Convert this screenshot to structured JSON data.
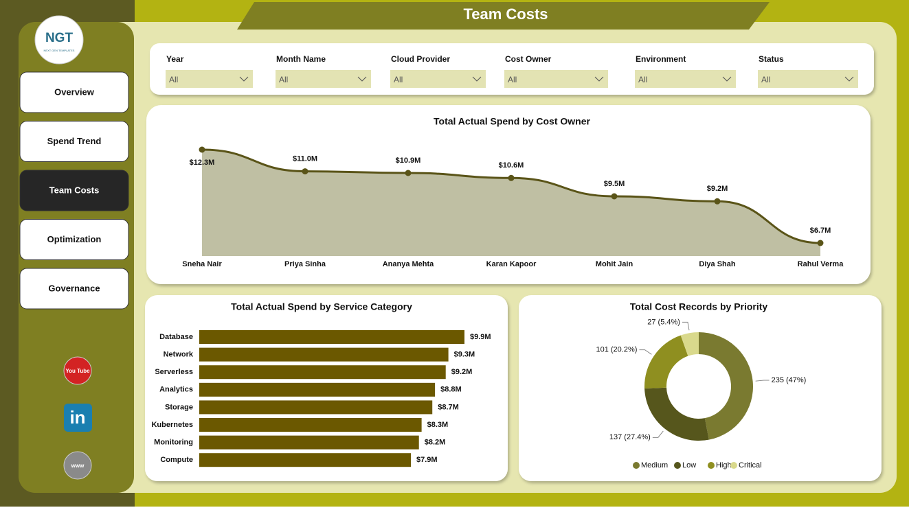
{
  "header": {
    "title": "Team Costs"
  },
  "logo": {
    "name": "NGT",
    "tagline": "NEXT GEN TEMPLATES"
  },
  "nav": [
    {
      "label": "Overview"
    },
    {
      "label": "Spend Trend"
    },
    {
      "label": "Team Costs",
      "active": true
    },
    {
      "label": "Optimization"
    },
    {
      "label": "Governance"
    }
  ],
  "filters": [
    {
      "label": "Year",
      "value": "All"
    },
    {
      "label": "Month Name",
      "value": "All"
    },
    {
      "label": "Cloud Provider",
      "value": "All"
    },
    {
      "label": "Cost Owner",
      "value": "All"
    },
    {
      "label": "Environment",
      "value": "All"
    },
    {
      "label": "Status",
      "value": "All"
    }
  ],
  "social": [
    "You Tube",
    "in",
    "www"
  ],
  "chart_data": [
    {
      "type": "area",
      "title": "Total Actual Spend by Cost Owner",
      "categories": [
        "Sneha Nair",
        "Priya Sinha",
        "Ananya Mehta",
        "Karan Kapoor",
        "Mohit Jain",
        "Diya Shah",
        "Rahul Verma"
      ],
      "values": [
        12.3,
        11.0,
        10.9,
        10.6,
        9.5,
        9.2,
        6.7
      ],
      "value_labels": [
        "$12.3M",
        "$11.0M",
        "$10.9M",
        "$10.6M",
        "$9.5M",
        "$9.2M",
        "$6.7M"
      ],
      "color": "#5a5418",
      "fill": "#bfbfa3"
    },
    {
      "type": "hbar",
      "title": "Total Actual Spend by Service Category",
      "categories": [
        "Database",
        "Network",
        "Serverless",
        "Analytics",
        "Storage",
        "Kubernetes",
        "Monitoring",
        "Compute"
      ],
      "values": [
        9.9,
        9.3,
        9.2,
        8.8,
        8.7,
        8.3,
        8.2,
        7.9
      ],
      "value_labels": [
        "$9.9M",
        "$9.3M",
        "$9.2M",
        "$8.8M",
        "$8.7M",
        "$8.3M",
        "$8.2M",
        "$7.9M"
      ],
      "color": "#6b5800"
    },
    {
      "type": "donut",
      "title": "Total Cost Records by Priority",
      "categories": [
        "Medium",
        "Low",
        "High",
        "Critical"
      ],
      "values": [
        235,
        137,
        101,
        27
      ],
      "value_labels": [
        "235 (47%)",
        "137 (27.4%)",
        "101 (20.2%)",
        "27 (5.4%)"
      ],
      "colors": [
        "#7a7a30",
        "#56561c",
        "#8f8f20",
        "#d9d98c"
      ]
    }
  ]
}
